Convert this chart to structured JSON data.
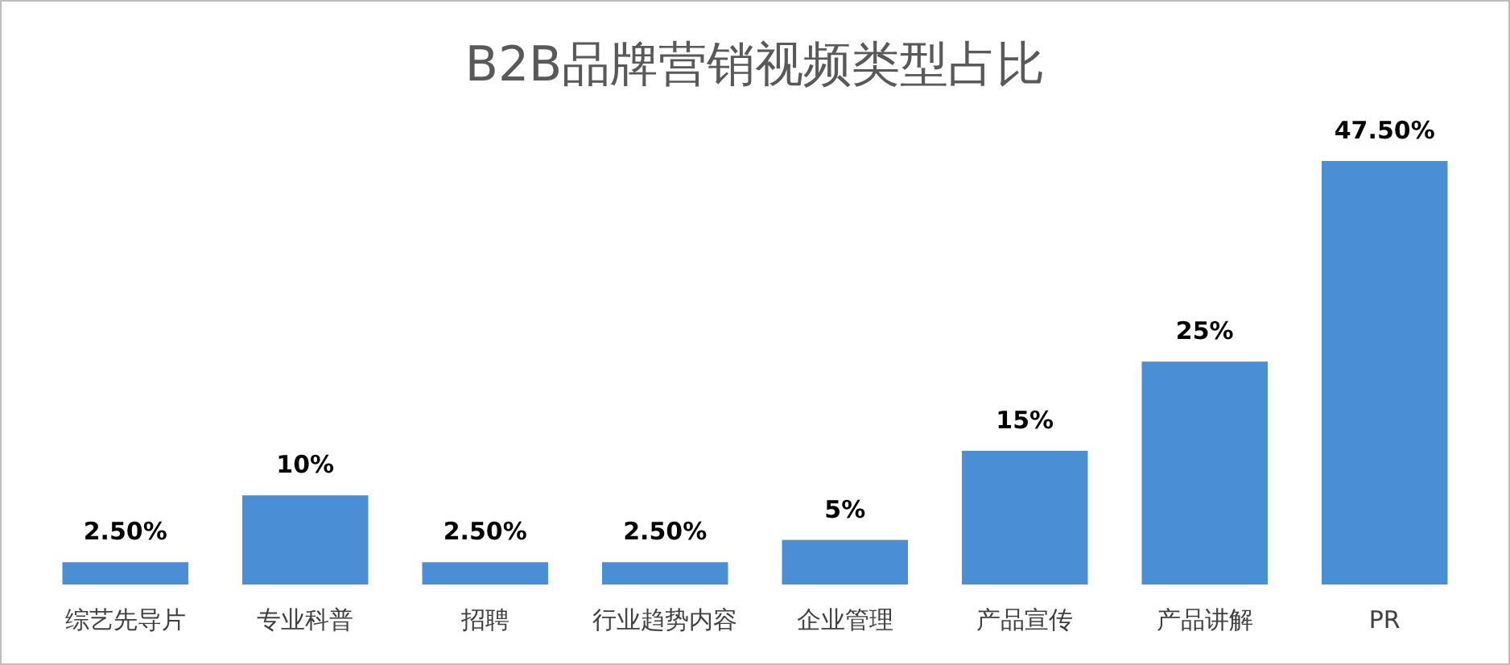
{
  "chart_data": {
    "type": "bar",
    "title": "B2B品牌营销视频类型占比",
    "categories": [
      "综艺先导片",
      "专业科普",
      "招聘",
      "行业趋势内容",
      "企业管理",
      "产品宣传",
      "产品讲解",
      "PR"
    ],
    "values": [
      2.5,
      10,
      2.5,
      2.5,
      5,
      15,
      25,
      47.5
    ],
    "value_labels": [
      "2.50%",
      "10%",
      "2.50%",
      "2.50%",
      "5%",
      "15%",
      "25%",
      "47.50%"
    ],
    "color": "#4a8fd6"
  }
}
